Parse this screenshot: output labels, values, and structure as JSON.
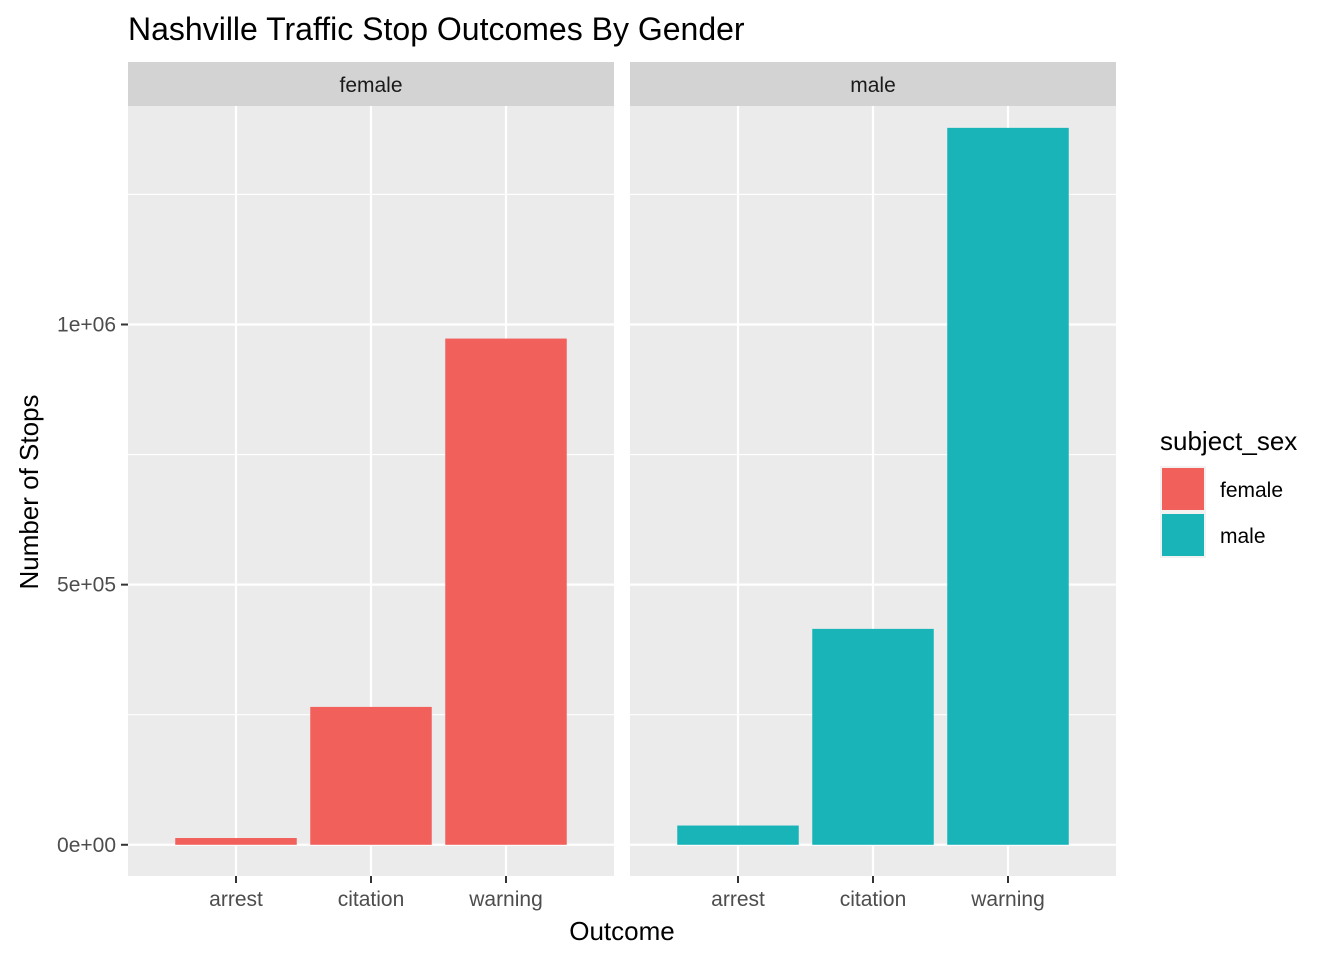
{
  "chart_data": {
    "type": "bar",
    "title": "Nashville Traffic Stop Outcomes By Gender",
    "xlabel": "Outcome",
    "ylabel": "Number of Stops",
    "categories": [
      "arrest",
      "citation",
      "warning"
    ],
    "ylim": [
      -60000,
      1420000
    ],
    "yticks": [
      0,
      500000,
      1000000
    ],
    "ytick_labels": [
      "0e+00",
      "5e+05",
      "1e+06"
    ],
    "grid": true,
    "facet_var": "subject_sex",
    "legend": {
      "title": "subject_sex",
      "position": "right"
    },
    "facets": [
      {
        "name": "female",
        "color": "#F2605C",
        "values": [
          13000,
          265000,
          973000
        ]
      },
      {
        "name": "male",
        "color": "#18B4B8",
        "values": [
          37000,
          415000,
          1378000
        ]
      }
    ]
  }
}
